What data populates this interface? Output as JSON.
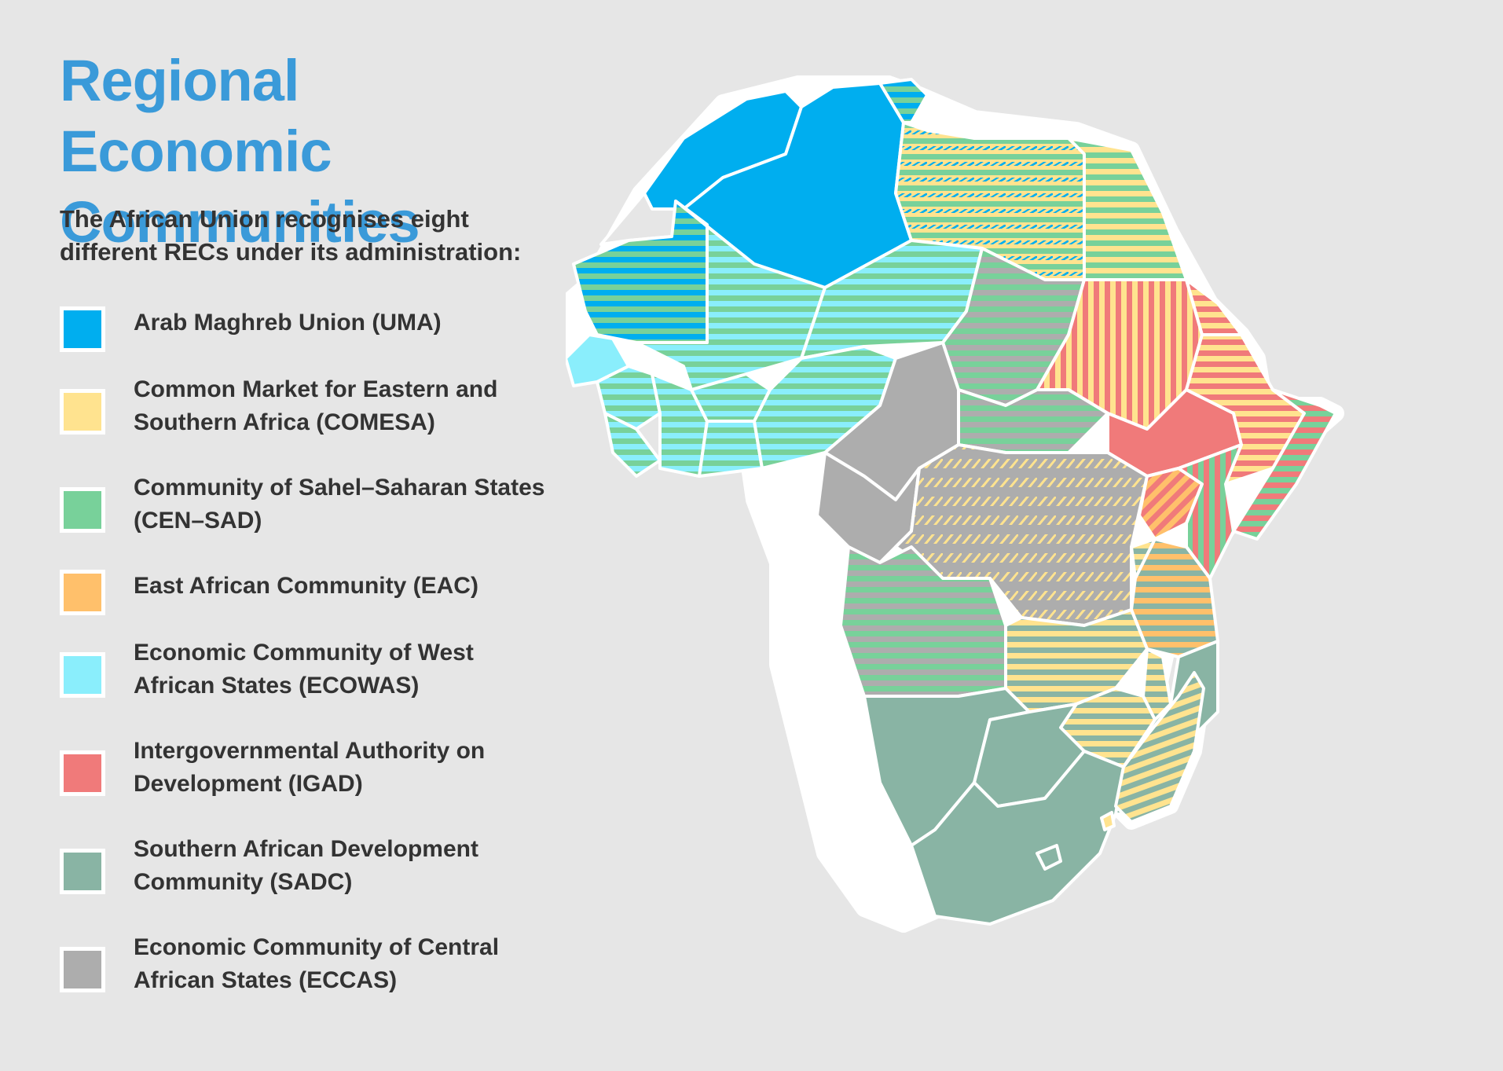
{
  "title": "Regional Economic Communities",
  "intro": "The African Union recognises eight different RECs under its administration:",
  "legend": [
    {
      "label": "Arab Maghreb Union (UMA)",
      "color": "#00aeef"
    },
    {
      "label": "Common Market for Eastern and Southern Africa (COMESA)",
      "color": "#ffe38f"
    },
    {
      "label": "Community of Sahel–Saharan States (CEN–SAD)",
      "color": "#78d19a"
    },
    {
      "label": "East African Community (EAC)",
      "color": "#ffc06b"
    },
    {
      "label": "Economic Community of West African States (ECOWAS)",
      "color": "#8aeefc"
    },
    {
      "label": "Intergovernmental Authority on Development (IGAD)",
      "color": "#f07a7a"
    },
    {
      "label": "Southern African Development Community (SADC)",
      "color": "#89b4a4"
    },
    {
      "label": "Economic Community of Central African States (ECCAS)",
      "color": "#adadad"
    }
  ]
}
